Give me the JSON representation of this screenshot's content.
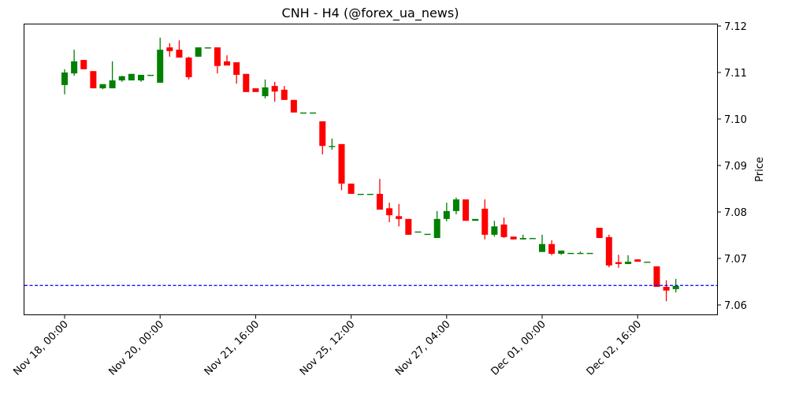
{
  "chart_data": {
    "type": "candlestick",
    "title": "CNH - H4 (@forex_ua_news)",
    "xlabel": "",
    "ylabel": "Price",
    "ylim": [
      7.058,
      7.1215
    ],
    "y_ticks": [
      7.06,
      7.07,
      7.08,
      7.09,
      7.1,
      7.11,
      7.12
    ],
    "y_tick_labels": [
      "7.06",
      "7.07",
      "7.08",
      "7.09",
      "7.10",
      "7.11",
      "7.12"
    ],
    "y_axis_position": "right",
    "x_ticks": [
      {
        "index": 0,
        "label": "Nov 18, 00:00"
      },
      {
        "index": 10,
        "label": "Nov 20, 00:00"
      },
      {
        "index": 20,
        "label": "Nov 21, 16:00"
      },
      {
        "index": 30,
        "label": "Nov 25, 12:00"
      },
      {
        "index": 40,
        "label": "Nov 27, 04:00"
      },
      {
        "index": 50,
        "label": "Dec 01, 00:00"
      },
      {
        "index": 60,
        "label": "Dec 02, 16:00"
      }
    ],
    "grid": false,
    "up_color": "#008000",
    "down_color": "#ff0000",
    "reference_line": {
      "value": 7.0642,
      "color": "#0000ff",
      "style": "dashed"
    },
    "candles": [
      {
        "o": 7.1073,
        "h": 7.1107,
        "l": 7.1053,
        "c": 7.11
      },
      {
        "o": 7.1098,
        "h": 7.1149,
        "l": 7.1093,
        "c": 7.1124
      },
      {
        "o": 7.1127,
        "h": 7.1127,
        "l": 7.1107,
        "c": 7.1107
      },
      {
        "o": 7.1103,
        "h": 7.1103,
        "l": 7.1066,
        "c": 7.1066
      },
      {
        "o": 7.1066,
        "h": 7.1073,
        "l": 7.1064,
        "c": 7.1075
      },
      {
        "o": 7.1066,
        "h": 7.1124,
        "l": 7.1066,
        "c": 7.1083
      },
      {
        "o": 7.1083,
        "h": 7.1093,
        "l": 7.108,
        "c": 7.1092
      },
      {
        "o": 7.1083,
        "h": 7.1097,
        "l": 7.1083,
        "c": 7.1097
      },
      {
        "o": 7.1083,
        "h": 7.1095,
        "l": 7.108,
        "c": 7.1095
      },
      {
        "o": 7.1095,
        "h": 7.1095,
        "l": 7.1095,
        "c": 7.1095
      },
      {
        "o": 7.1078,
        "h": 7.1175,
        "l": 7.1078,
        "c": 7.1149
      },
      {
        "o": 7.1154,
        "h": 7.1163,
        "l": 7.1134,
        "c": 7.1146
      },
      {
        "o": 7.1149,
        "h": 7.1169,
        "l": 7.1132,
        "c": 7.1132
      },
      {
        "o": 7.1132,
        "h": 7.1134,
        "l": 7.1085,
        "c": 7.109
      },
      {
        "o": 7.1134,
        "h": 7.1154,
        "l": 7.1134,
        "c": 7.1154
      },
      {
        "o": 7.1154,
        "h": 7.1154,
        "l": 7.1154,
        "c": 7.1154
      },
      {
        "o": 7.1154,
        "h": 7.1154,
        "l": 7.1098,
        "c": 7.1114
      },
      {
        "o": 7.1124,
        "h": 7.1137,
        "l": 7.1119,
        "c": 7.1115
      },
      {
        "o": 7.1122,
        "h": 7.1122,
        "l": 7.1076,
        "c": 7.1095
      },
      {
        "o": 7.1097,
        "h": 7.1097,
        "l": 7.1058,
        "c": 7.1058
      },
      {
        "o": 7.1066,
        "h": 7.1066,
        "l": 7.1058,
        "c": 7.1058
      },
      {
        "o": 7.1049,
        "h": 7.1085,
        "l": 7.1044,
        "c": 7.1068
      },
      {
        "o": 7.1071,
        "h": 7.108,
        "l": 7.1037,
        "c": 7.1059
      },
      {
        "o": 7.1063,
        "h": 7.1071,
        "l": 7.1041,
        "c": 7.1041
      },
      {
        "o": 7.1041,
        "h": 7.1041,
        "l": 7.1014,
        "c": 7.1014
      },
      {
        "o": 7.1014,
        "h": 7.1014,
        "l": 7.1014,
        "c": 7.1014
      },
      {
        "o": 7.1014,
        "h": 7.1014,
        "l": 7.1014,
        "c": 7.1014
      },
      {
        "o": 7.0995,
        "h": 7.0995,
        "l": 7.0924,
        "c": 7.0942
      },
      {
        "o": 7.0942,
        "h": 7.0958,
        "l": 7.0934,
        "c": 7.0942
      },
      {
        "o": 7.0946,
        "h": 7.0946,
        "l": 7.0847,
        "c": 7.0861
      },
      {
        "o": 7.0861,
        "h": 7.0861,
        "l": 7.0839,
        "c": 7.0839
      },
      {
        "o": 7.0839,
        "h": 7.0839,
        "l": 7.0839,
        "c": 7.0839
      },
      {
        "o": 7.0839,
        "h": 7.0839,
        "l": 7.0839,
        "c": 7.0839
      },
      {
        "o": 7.0839,
        "h": 7.0871,
        "l": 7.0805,
        "c": 7.0805
      },
      {
        "o": 7.0808,
        "h": 7.082,
        "l": 7.0778,
        "c": 7.0793
      },
      {
        "o": 7.0791,
        "h": 7.0817,
        "l": 7.0769,
        "c": 7.0785
      },
      {
        "o": 7.0785,
        "h": 7.0785,
        "l": 7.0751,
        "c": 7.0751
      },
      {
        "o": 7.0758,
        "h": 7.0758,
        "l": 7.0758,
        "c": 7.0758
      },
      {
        "o": 7.0753,
        "h": 7.0753,
        "l": 7.0753,
        "c": 7.0753
      },
      {
        "o": 7.0744,
        "h": 7.0802,
        "l": 7.0744,
        "c": 7.0785
      },
      {
        "o": 7.0785,
        "h": 7.082,
        "l": 7.078,
        "c": 7.0802
      },
      {
        "o": 7.0802,
        "h": 7.0831,
        "l": 7.0795,
        "c": 7.0827
      },
      {
        "o": 7.0827,
        "h": 7.0827,
        "l": 7.0781,
        "c": 7.0781
      },
      {
        "o": 7.0781,
        "h": 7.0781,
        "l": 7.0781,
        "c": 7.0785
      },
      {
        "o": 7.0807,
        "h": 7.0827,
        "l": 7.0741,
        "c": 7.0751
      },
      {
        "o": 7.0751,
        "h": 7.0781,
        "l": 7.0747,
        "c": 7.0769
      },
      {
        "o": 7.0773,
        "h": 7.0788,
        "l": 7.0744,
        "c": 7.0746
      },
      {
        "o": 7.0747,
        "h": 7.0747,
        "l": 7.0741,
        "c": 7.0741
      },
      {
        "o": 7.0741,
        "h": 7.0751,
        "l": 7.0741,
        "c": 7.0744
      },
      {
        "o": 7.0744,
        "h": 7.0744,
        "l": 7.0744,
        "c": 7.0744
      },
      {
        "o": 7.0714,
        "h": 7.0751,
        "l": 7.0714,
        "c": 7.0731
      },
      {
        "o": 7.0731,
        "h": 7.0739,
        "l": 7.0707,
        "c": 7.071
      },
      {
        "o": 7.071,
        "h": 7.0717,
        "l": 7.0708,
        "c": 7.0717
      },
      {
        "o": 7.0712,
        "h": 7.0712,
        "l": 7.0712,
        "c": 7.0712
      },
      {
        "o": 7.0712,
        "h": 7.0715,
        "l": 7.0712,
        "c": 7.0712
      },
      {
        "o": 7.0712,
        "h": 7.0712,
        "l": 7.0712,
        "c": 7.0712
      },
      {
        "o": 7.0766,
        "h": 7.0766,
        "l": 7.0744,
        "c": 7.0744
      },
      {
        "o": 7.0746,
        "h": 7.0751,
        "l": 7.0681,
        "c": 7.0685
      },
      {
        "o": 7.0692,
        "h": 7.0708,
        "l": 7.068,
        "c": 7.0688
      },
      {
        "o": 7.0688,
        "h": 7.0707,
        "l": 7.0688,
        "c": 7.0693
      },
      {
        "o": 7.0698,
        "h": 7.0698,
        "l": 7.0693,
        "c": 7.0693
      },
      {
        "o": 7.0693,
        "h": 7.0693,
        "l": 7.0693,
        "c": 7.0693
      },
      {
        "o": 7.0683,
        "h": 7.0683,
        "l": 7.0639,
        "c": 7.0639
      },
      {
        "o": 7.0639,
        "h": 7.0653,
        "l": 7.0608,
        "c": 7.0631
      },
      {
        "o": 7.0634,
        "h": 7.0656,
        "l": 7.0627,
        "c": 7.0641
      }
    ]
  }
}
